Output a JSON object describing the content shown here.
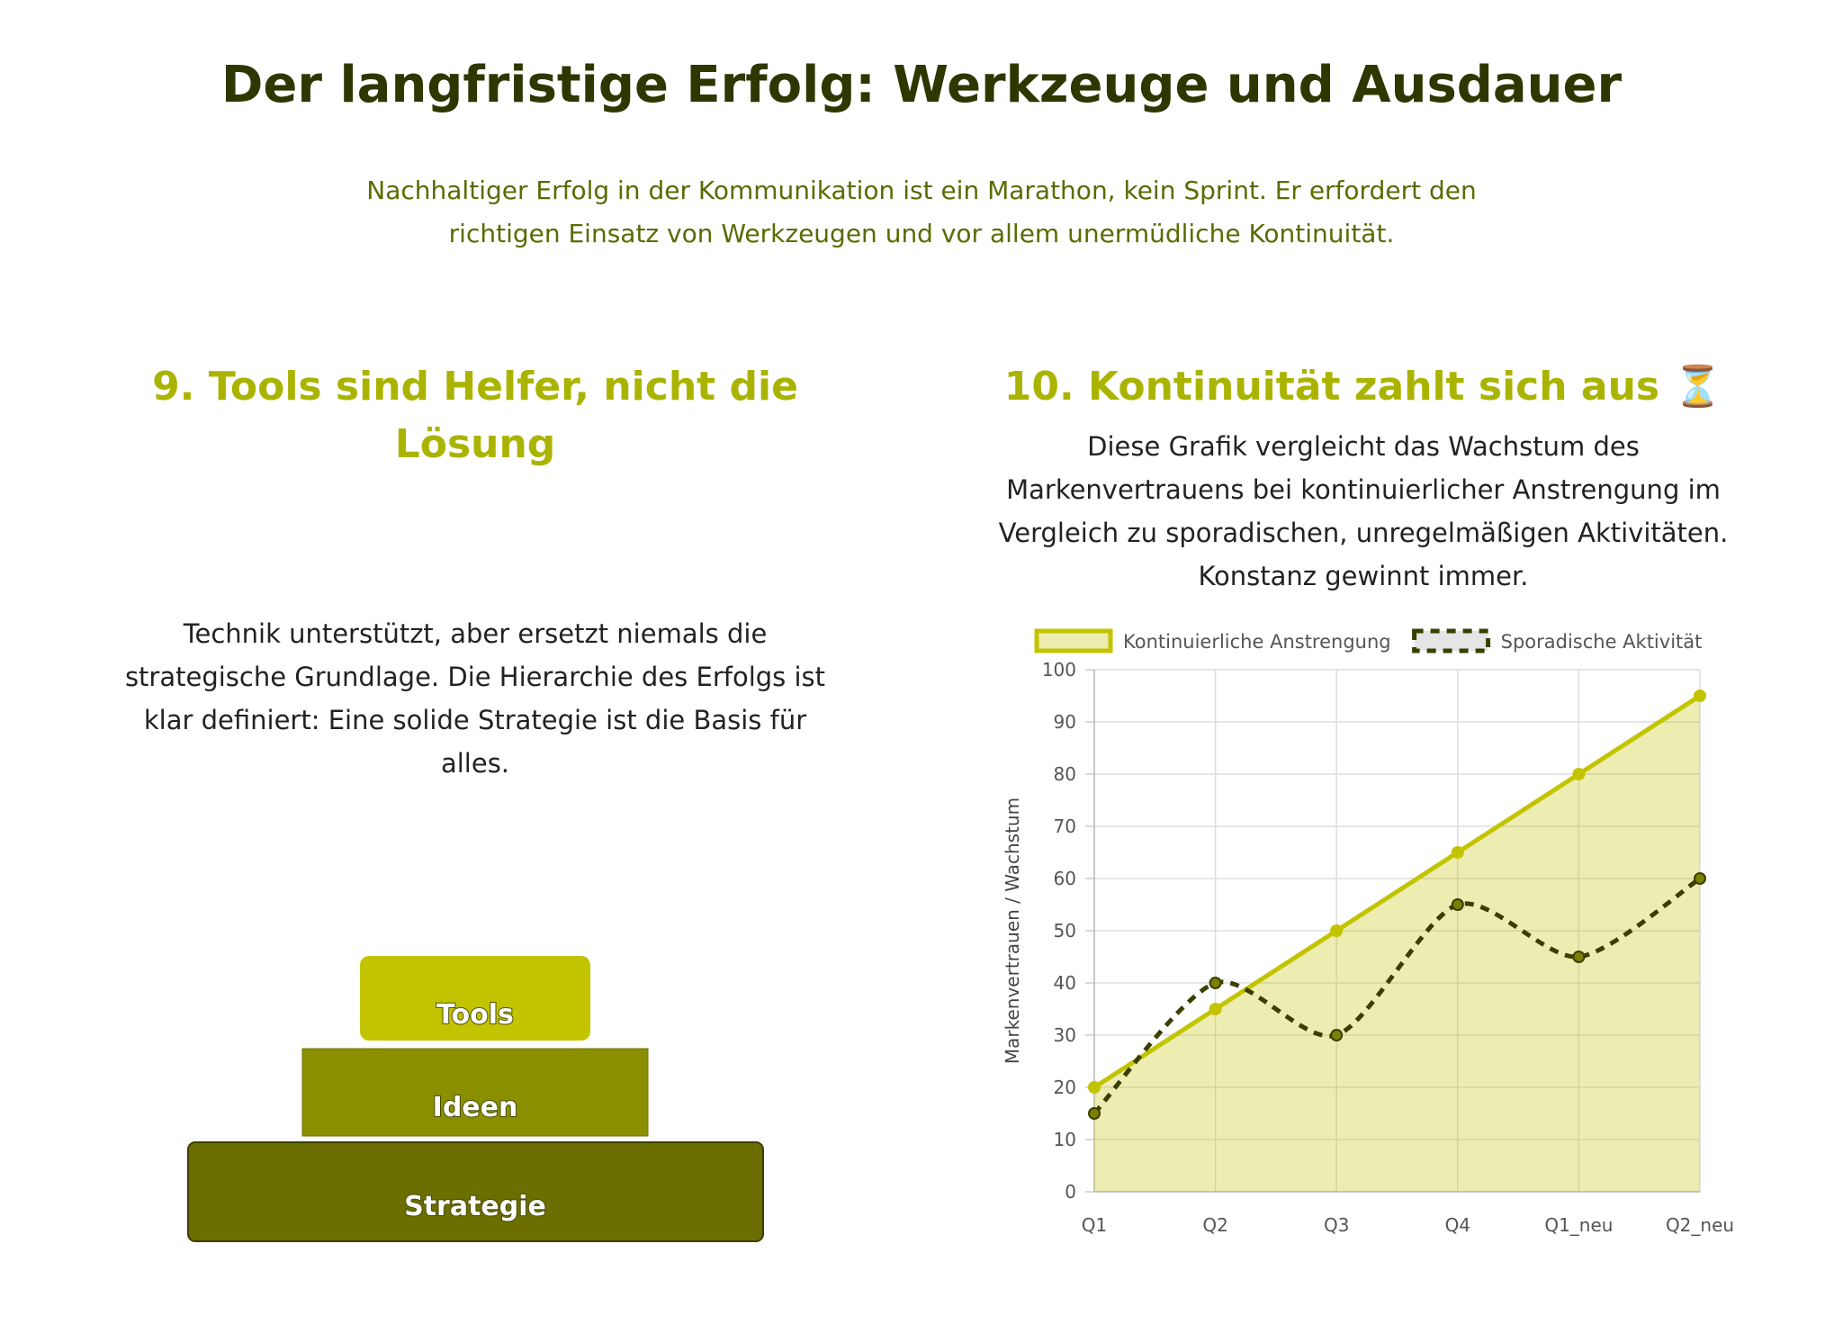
{
  "header": {
    "title": "Der langfristige Erfolg: Werkzeuge und Ausdauer",
    "subtitle": "Nachhaltiger Erfolg in der Kommunikation ist ein Marathon, kein Sprint. Er erfordert den richtigen Einsatz von Werkzeugen und vor allem unermüdliche Kontinuität."
  },
  "left": {
    "heading": "9. Tools sind Helfer, nicht die Lösung",
    "text": "Technik unterstützt, aber ersetzt niemals die strategische Grundlage. Die Hierarchie des Erfolgs ist klar definiert: Eine solide Strategie ist die Basis für alles.",
    "pyramid": [
      "Tools",
      "Ideen",
      "Strategie"
    ]
  },
  "right": {
    "heading": "10. Kontinuität zahlt sich aus ⏳",
    "text": "Diese Grafik vergleicht das Wachstum des Markenvertrauens bei kontinuierlicher Anstrengung im Vergleich zu sporadischen, unregelmäßigen Aktivitäten. Konstanz gewinnt immer."
  },
  "chart_data": {
    "type": "line",
    "y_label": "Markenvertrauen / Wachstum",
    "categories": [
      "Q1",
      "Q2",
      "Q3",
      "Q4",
      "Q1_neu",
      "Q2_neu"
    ],
    "series": [
      {
        "name": "Kontinuierliche Anstrengung",
        "color": "#c3c400",
        "values": [
          20,
          35,
          50,
          65,
          80,
          95
        ]
      },
      {
        "name": "Sporadische Aktivität",
        "color": "#3a3f00",
        "values": [
          15,
          40,
          30,
          55,
          45,
          60
        ]
      }
    ],
    "ylim": [
      0,
      100
    ],
    "yticks": [
      0,
      10,
      20,
      30,
      40,
      50,
      60,
      70,
      80,
      90,
      100
    ],
    "grid": true,
    "legend": "top"
  }
}
